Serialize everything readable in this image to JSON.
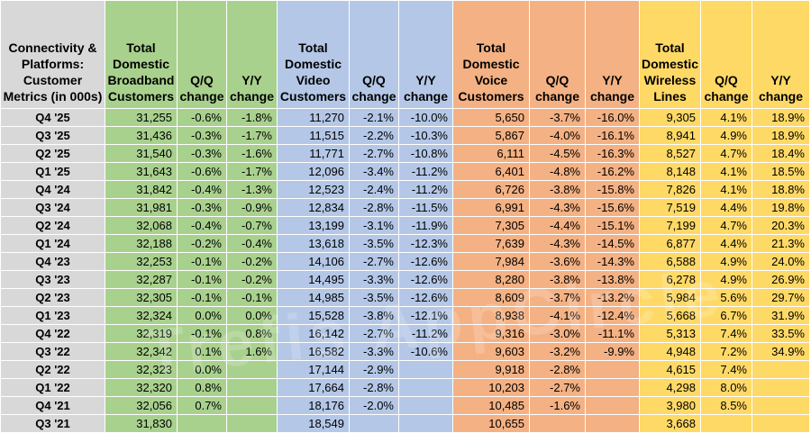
{
  "table": {
    "columns": [
      {
        "label": "Connectivity & Platforms: Customer Metrics (in 000s)",
        "group": "row"
      },
      {
        "label": "Total Domestic Broadband Customers",
        "group": "g"
      },
      {
        "label": "Q/Q change",
        "group": "g"
      },
      {
        "label": "Y/Y change",
        "group": "g"
      },
      {
        "label": "Total Domestic Video Customers",
        "group": "b"
      },
      {
        "label": "Q/Q change",
        "group": "b"
      },
      {
        "label": "Y/Y change",
        "group": "b"
      },
      {
        "label": "Total Domestic Voice Customers",
        "group": "o"
      },
      {
        "label": "Q/Q change",
        "group": "o"
      },
      {
        "label": "Y/Y change",
        "group": "o"
      },
      {
        "label": "Total Domestic Wireless Lines",
        "group": "y"
      },
      {
        "label": "Q/Q change",
        "group": "y"
      },
      {
        "label": "Y/Y change",
        "group": "y"
      }
    ],
    "rows": [
      [
        "Q4 '25",
        "31,255",
        "-0.6%",
        "-1.8%",
        "11,270",
        "-2.1%",
        "-10.0%",
        "5,650",
        "-3.7%",
        "-16.0%",
        "9,305",
        "4.1%",
        "18.9%"
      ],
      [
        "Q3 '25",
        "31,436",
        "-0.3%",
        "-1.7%",
        "11,515",
        "-2.2%",
        "-10.3%",
        "5,867",
        "-4.0%",
        "-16.1%",
        "8,941",
        "4.9%",
        "18.9%"
      ],
      [
        "Q2 '25",
        "31,540",
        "-0.3%",
        "-1.6%",
        "11,771",
        "-2.7%",
        "-10.8%",
        "6,111",
        "-4.5%",
        "-16.3%",
        "8,527",
        "4.7%",
        "18.4%"
      ],
      [
        "Q1 '25",
        "31,643",
        "-0.6%",
        "-1.7%",
        "12,096",
        "-3.4%",
        "-11.2%",
        "6,401",
        "-4.8%",
        "-16.2%",
        "8,148",
        "4.1%",
        "18.5%"
      ],
      [
        "Q4 '24",
        "31,842",
        "-0.4%",
        "-1.3%",
        "12,523",
        "-2.4%",
        "-11.2%",
        "6,726",
        "-3.8%",
        "-15.8%",
        "7,826",
        "4.1%",
        "18.8%"
      ],
      [
        "Q3 '24",
        "31,981",
        "-0.3%",
        "-0.9%",
        "12,834",
        "-2.8%",
        "-11.5%",
        "6,991",
        "-4.3%",
        "-15.6%",
        "7,519",
        "4.4%",
        "19.8%"
      ],
      [
        "Q2 '24",
        "32,068",
        "-0.4%",
        "-0.7%",
        "13,199",
        "-3.1%",
        "-11.9%",
        "7,305",
        "-4.4%",
        "-15.1%",
        "7,199",
        "4.7%",
        "20.3%"
      ],
      [
        "Q1 '24",
        "32,188",
        "-0.2%",
        "-0.4%",
        "13,618",
        "-3.5%",
        "-12.3%",
        "7,639",
        "-4.3%",
        "-14.5%",
        "6,877",
        "4.4%",
        "21.3%"
      ],
      [
        "Q4 '23",
        "32,253",
        "-0.1%",
        "-0.2%",
        "14,106",
        "-2.7%",
        "-12.6%",
        "7,984",
        "-3.6%",
        "-14.3%",
        "6,588",
        "4.9%",
        "24.0%"
      ],
      [
        "Q3 '23",
        "32,287",
        "-0.1%",
        "-0.2%",
        "14,495",
        "-3.3%",
        "-12.6%",
        "8,280",
        "-3.8%",
        "-13.8%",
        "6,278",
        "4.9%",
        "26.9%"
      ],
      [
        "Q2 '23",
        "32,305",
        "-0.1%",
        "-0.1%",
        "14,985",
        "-3.5%",
        "-12.6%",
        "8,609",
        "-3.7%",
        "-13.2%",
        "5,984",
        "5.6%",
        "29.7%"
      ],
      [
        "Q1 '23",
        "32,324",
        "0.0%",
        "0.0%",
        "15,528",
        "-3.8%",
        "-12.1%",
        "8,938",
        "-4.1%",
        "-12.4%",
        "5,668",
        "6.7%",
        "31.9%"
      ],
      [
        "Q4 '22",
        "32,319",
        "-0.1%",
        "0.8%",
        "16,142",
        "-2.7%",
        "-11.2%",
        "9,316",
        "-3.0%",
        "-11.1%",
        "5,313",
        "7.4%",
        "33.5%"
      ],
      [
        "Q3 '22",
        "32,342",
        "0.1%",
        "1.6%",
        "16,582",
        "-3.3%",
        "-10.6%",
        "9,603",
        "-3.2%",
        "-9.9%",
        "4,948",
        "7.2%",
        "34.9%"
      ],
      [
        "Q2 '22",
        "32,323",
        "0.0%",
        "",
        "17,144",
        "-2.9%",
        "",
        "9,918",
        "-2.8%",
        "",
        "4,615",
        "7.4%",
        ""
      ],
      [
        "Q1 '22",
        "32,320",
        "0.8%",
        "",
        "17,664",
        "-2.8%",
        "",
        "10,203",
        "-2.7%",
        "",
        "4,298",
        "8.0%",
        ""
      ],
      [
        "Q4 '21",
        "32,056",
        "0.7%",
        "",
        "18,176",
        "-2.0%",
        "",
        "10,485",
        "-1.6%",
        "",
        "3,980",
        "8.5%",
        ""
      ],
      [
        "Q3 '21",
        "31,830",
        "",
        "",
        "18,549",
        "",
        "",
        "10,655",
        "",
        "",
        "3,668",
        "",
        ""
      ]
    ]
  },
  "watermark": "Trefis AppCircle"
}
